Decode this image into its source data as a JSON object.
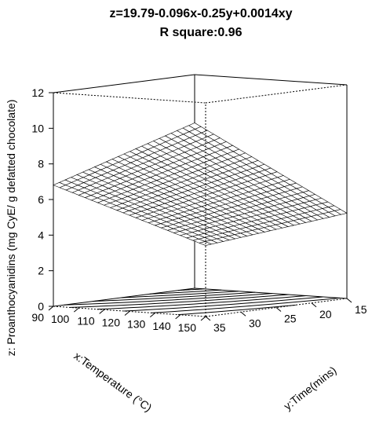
{
  "chart_data": {
    "type": "surface3d",
    "title": "z=19.79-0.096x-0.25y+0.0014xy",
    "subtitle": "R square:0.96",
    "equation": {
      "intercept": 19.79,
      "x": -0.096,
      "y": -0.25,
      "xy": 0.0014
    },
    "xlabel": "x:Temperature (°C)",
    "ylabel": "y:Time(mins)",
    "zlabel": "z: Proanthocyanidins (mg CyE/ g defatted chocolate)",
    "xlim": [
      90,
      150
    ],
    "ylim": [
      15,
      35
    ],
    "zlim": [
      0,
      12
    ],
    "x_ticks": [
      90,
      100,
      110,
      120,
      130,
      140,
      150
    ],
    "y_ticks": [
      15,
      20,
      25,
      30,
      35
    ],
    "z_ticks": [
      0,
      2,
      4,
      6,
      8,
      10,
      12
    ],
    "grid_n": 24,
    "contour_levels": [
      2,
      2.5,
      3,
      3.5,
      4,
      4.5,
      5,
      5.5,
      6,
      6.5,
      7,
      7.5,
      8,
      8.5,
      9,
      9.5,
      10,
      10.5,
      11
    ]
  }
}
